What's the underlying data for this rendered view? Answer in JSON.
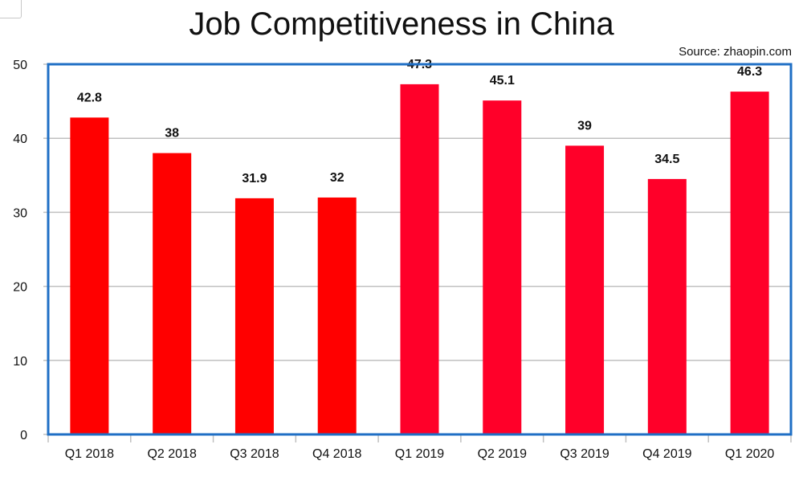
{
  "corner_widget": "blank-panel-corner",
  "chart_data": {
    "type": "bar",
    "title": "Job Competitiveness in China",
    "source": "Source: zhaopin.com",
    "categories": [
      "Q1 2018",
      "Q2 2018",
      "Q3 2018",
      "Q4 2018",
      "Q1 2019",
      "Q2 2019",
      "Q3 2019",
      "Q4 2019",
      "Q1 2020"
    ],
    "values": [
      42.8,
      38,
      31.9,
      32,
      47.3,
      45.1,
      39,
      34.5,
      46.3
    ],
    "value_labels": [
      "42.8",
      "38",
      "31.9",
      "32",
      "47.3",
      "45.1",
      "39",
      "34.5",
      "46.3"
    ],
    "yticks": [
      0,
      10,
      20,
      30,
      40,
      50
    ],
    "ylim": [
      0,
      50
    ],
    "xlabel": "",
    "ylabel": "",
    "grid": true,
    "legend": "none",
    "colors": {
      "bars_2018": "#ff0000",
      "bars_2019_2020": "#ff0029",
      "frame": "#1f6fc5",
      "grid": "#c0c0c0",
      "text": "#111111"
    },
    "bar_colors": [
      "#ff0000",
      "#ff0000",
      "#ff0000",
      "#ff0000",
      "#ff0029",
      "#ff0029",
      "#ff0029",
      "#ff0029",
      "#ff0029"
    ]
  }
}
